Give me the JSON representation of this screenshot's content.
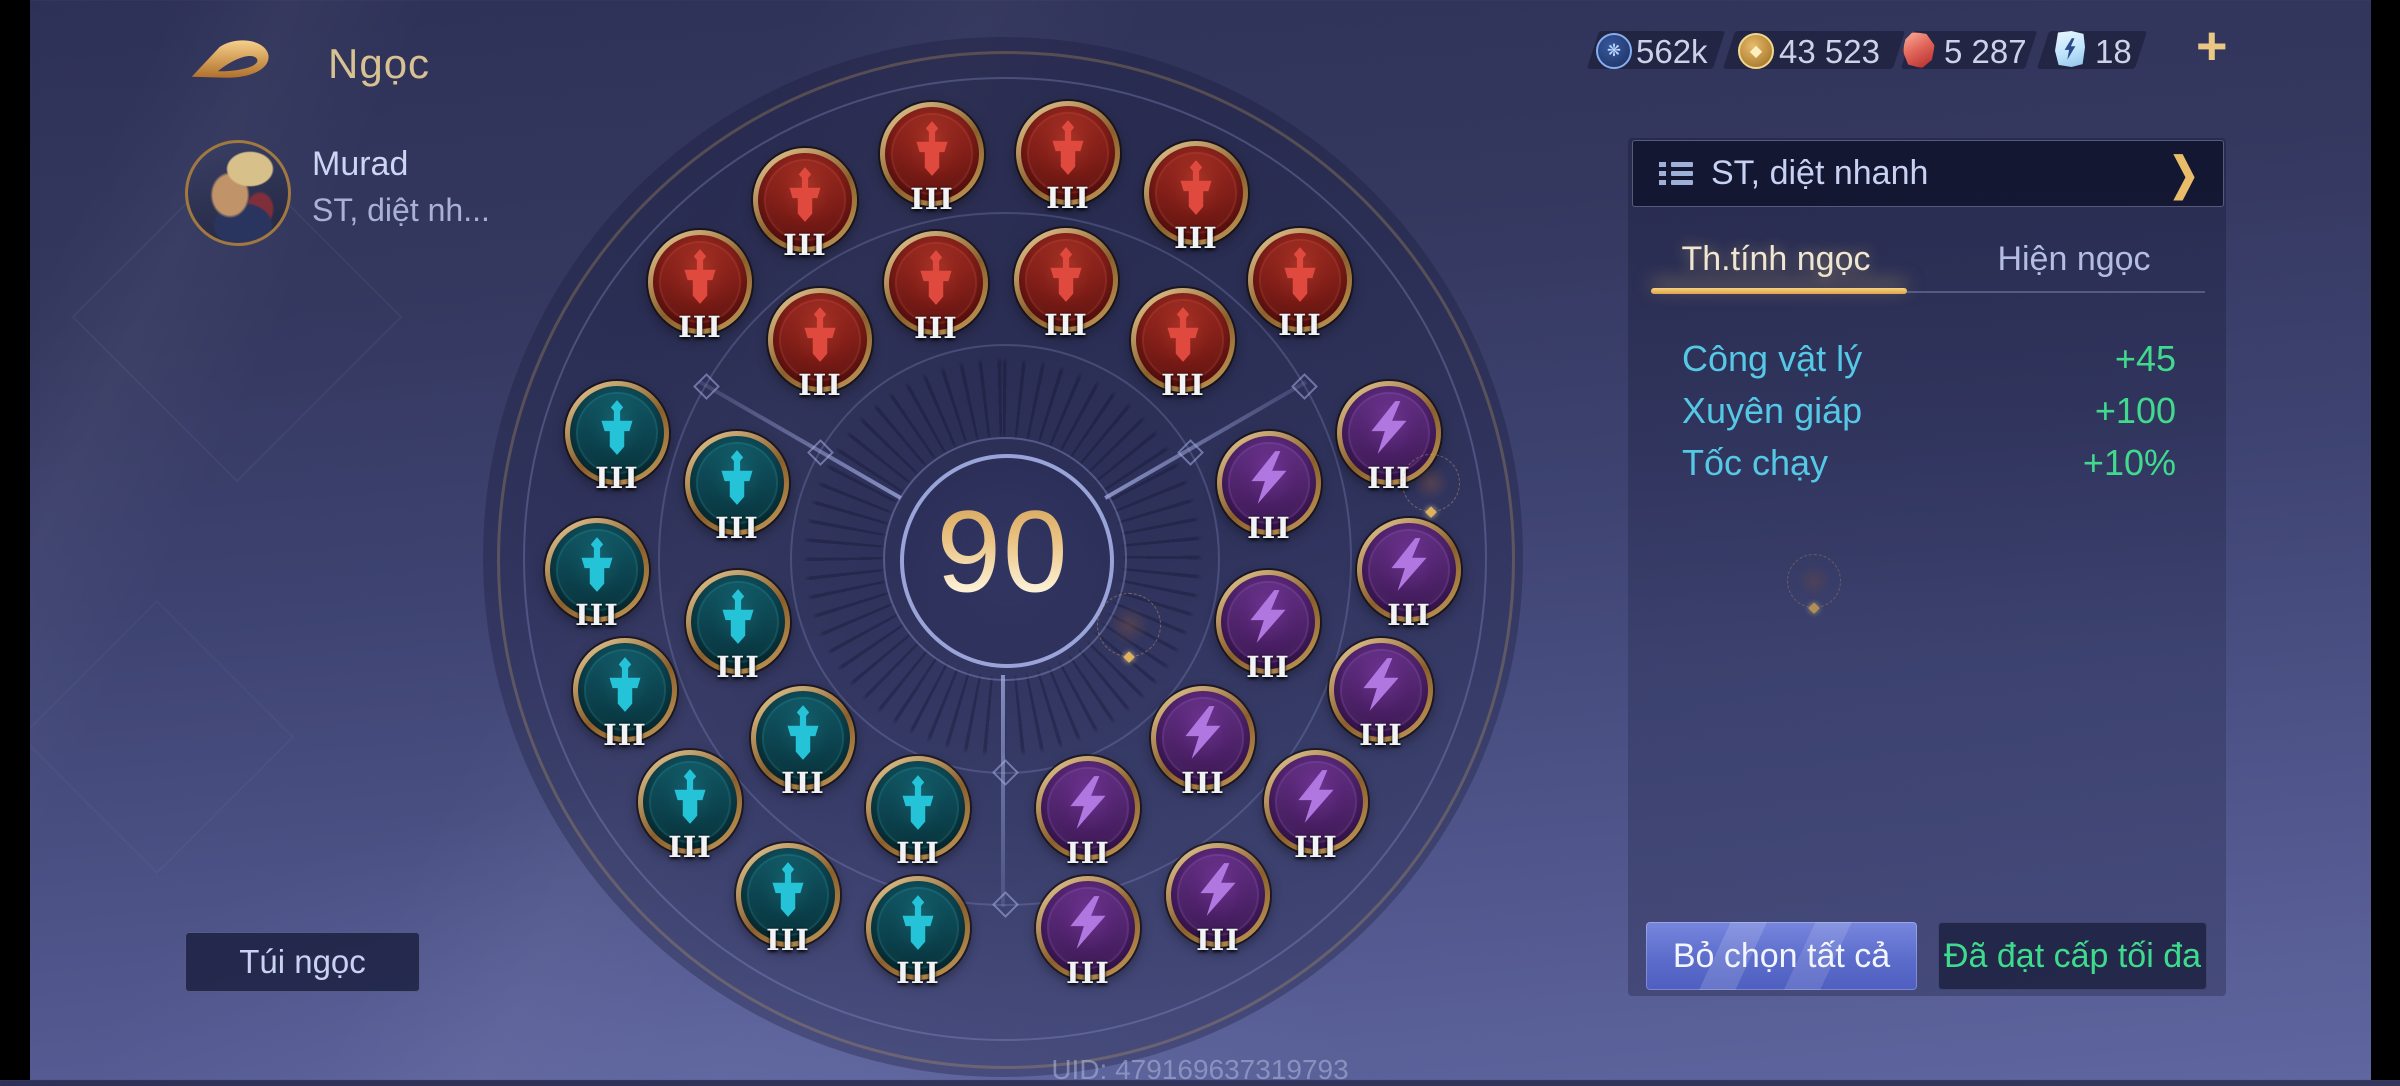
{
  "header": {
    "title": "Ngọc",
    "player": {
      "name": "Murad",
      "build_short": "ST, diệt nh..."
    }
  },
  "currencies": {
    "blue_coin": "562k",
    "gold_coin": "43 523",
    "red_gem": "5 287",
    "ticket": "18",
    "add_label": "+"
  },
  "wheel": {
    "level": "90",
    "uid": "UID: 479169637319793",
    "runes": [
      {
        "color": "red",
        "glyph": "sword",
        "tier": "III"
      },
      {
        "color": "red",
        "glyph": "sword",
        "tier": "III"
      },
      {
        "color": "red",
        "glyph": "sword",
        "tier": "III"
      },
      {
        "color": "red",
        "glyph": "sword",
        "tier": "III"
      },
      {
        "color": "red",
        "glyph": "sword",
        "tier": "III"
      },
      {
        "color": "red",
        "glyph": "sword",
        "tier": "III"
      },
      {
        "color": "red",
        "glyph": "sword",
        "tier": "III"
      },
      {
        "color": "red",
        "glyph": "sword",
        "tier": "III"
      },
      {
        "color": "red",
        "glyph": "sword",
        "tier": "III"
      },
      {
        "color": "red",
        "glyph": "sword",
        "tier": "III"
      },
      {
        "color": "teal",
        "glyph": "sword",
        "tier": "III"
      },
      {
        "color": "teal",
        "glyph": "sword",
        "tier": "III"
      },
      {
        "color": "teal",
        "glyph": "sword",
        "tier": "III"
      },
      {
        "color": "teal",
        "glyph": "sword",
        "tier": "III"
      },
      {
        "color": "teal",
        "glyph": "sword",
        "tier": "III"
      },
      {
        "color": "teal",
        "glyph": "sword",
        "tier": "III"
      },
      {
        "color": "teal",
        "glyph": "sword",
        "tier": "III"
      },
      {
        "color": "teal",
        "glyph": "sword",
        "tier": "III"
      },
      {
        "color": "teal",
        "glyph": "sword",
        "tier": "III"
      },
      {
        "color": "teal",
        "glyph": "sword",
        "tier": "III"
      },
      {
        "color": "purple",
        "glyph": "bolt",
        "tier": "III"
      },
      {
        "color": "purple",
        "glyph": "bolt",
        "tier": "III"
      },
      {
        "color": "purple",
        "glyph": "bolt",
        "tier": "III"
      },
      {
        "color": "purple",
        "glyph": "bolt",
        "tier": "III"
      },
      {
        "color": "purple",
        "glyph": "bolt",
        "tier": "III"
      },
      {
        "color": "purple",
        "glyph": "bolt",
        "tier": "III"
      },
      {
        "color": "purple",
        "glyph": "bolt",
        "tier": "III"
      },
      {
        "color": "purple",
        "glyph": "bolt",
        "tier": "III"
      },
      {
        "color": "purple",
        "glyph": "bolt",
        "tier": "III"
      },
      {
        "color": "purple",
        "glyph": "bolt",
        "tier": "III"
      }
    ]
  },
  "panel": {
    "build_name": "ST, diệt nhanh",
    "tabs": [
      {
        "label": "Th.tính ngọc",
        "active": true
      },
      {
        "label": "Hiện ngọc",
        "active": false
      }
    ],
    "stats": [
      {
        "label": "Công vật lý",
        "value": "+45"
      },
      {
        "label": "Xuyên giáp",
        "value": "+100"
      },
      {
        "label": "Tốc chạy",
        "value": "+10%"
      }
    ],
    "buttons": {
      "deselect_all": "Bỏ chọn tất cả",
      "max_level": "Đã đạt cấp tối đa"
    }
  },
  "footer": {
    "bag_button": "Túi ngọc"
  },
  "colors": {
    "accent_gold": "#e9bc6a",
    "stat_label_cyan": "#55c8e6",
    "stat_value_green": "#41d98e",
    "rune_red": "#e0493e",
    "rune_teal": "#25c3d8",
    "rune_purple": "#b177e0"
  }
}
